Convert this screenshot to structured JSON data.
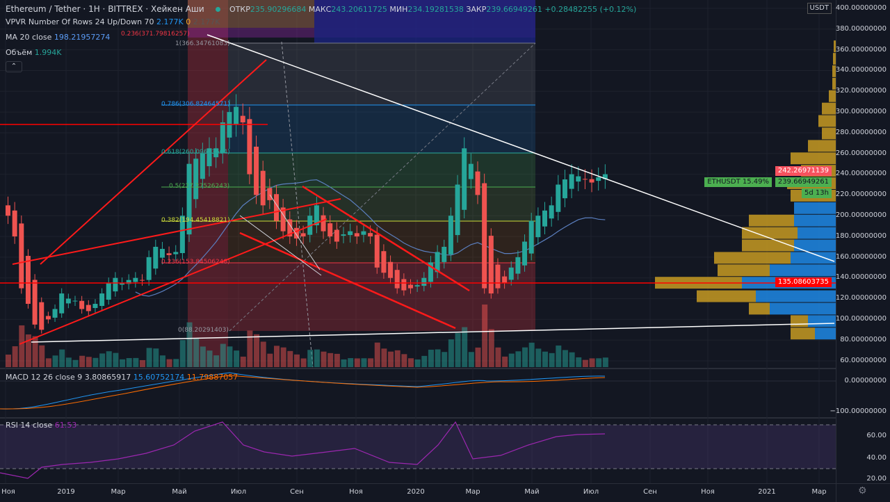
{
  "header": {
    "symbol": "Ethereum / Tether",
    "interval": "1H",
    "exchange": "BITTREX",
    "chart_style": "Хейкен Аши",
    "open_label": "ОТКР",
    "open": "235.90296684",
    "high_label": "МАКС",
    "high": "243.20611725",
    "low_label": "МИН",
    "low": "234.19281538",
    "close_label": "ЗАКР",
    "close": "239.66949261",
    "change": "+0.28482255 (+0.12%)"
  },
  "indicators": {
    "vpvr": {
      "label": "VPVR Number Of Rows 24 Up/Down 70",
      "up": "2.177K",
      "down": "0",
      "total": "2.177K"
    },
    "ma": {
      "label": "MA 20 close",
      "value": "198.21957274"
    },
    "volume": {
      "label": "Объём",
      "value": "1.994K"
    },
    "macd": {
      "label": "MACD 12 26 close 9",
      "hist": "3.80865917",
      "macd": "15.60752174",
      "signal": "11.79887057"
    },
    "rsi": {
      "label": "RSI 14 close",
      "value": "61.53"
    }
  },
  "fib": {
    "top": "0.236(371.79816257)",
    "l1": "1(366.34761083)",
    "l786": "0.786(306.82464571)",
    "l618": "0.618(260.09633664)",
    "l5": "0.5(227.27526243)",
    "l382": "0.382(194.45418821)",
    "l236": "0.236(153.84506248)",
    "l0": "0(88.20291403)"
  },
  "price_axis": {
    "currency": "USDT",
    "ticks": [
      "400.00000000",
      "380.00000000",
      "360.00000000",
      "340.00000000",
      "320.00000000",
      "300.00000000",
      "280.00000000",
      "260.00000000",
      "240.00000000",
      "220.00000000",
      "200.00000000",
      "180.00000000",
      "160.00000000",
      "140.00000000",
      "120.00000000",
      "100.00000000",
      "80.00000000",
      "60.00000000"
    ],
    "tag_high": "242.26971139",
    "tag_symbol": "ETHUSDT 15.49%",
    "tag_last": "239.66949261",
    "tag_countdown": "5d 13h",
    "tag_level": "135.08603735"
  },
  "macd_axis": [
    "0.00000000",
    "−100.00000000"
  ],
  "rsi_axis": [
    "60.00",
    "40.00",
    "20.00"
  ],
  "time_axis": [
    "Ноя",
    "2019",
    "Мар",
    "Май",
    "Июл",
    "Сен",
    "Ноя",
    "2020",
    "Мар",
    "Май",
    "Июл",
    "Сен",
    "Ноя",
    "2021",
    "Мар"
  ],
  "colors": {
    "up": "#26a69a",
    "down": "#ef5350",
    "ma": "#2962ff",
    "vp_up": "#1e88e5",
    "vp_down": "#c79a22",
    "level": "#ff0000"
  },
  "chart_data": {
    "type": "candlestick",
    "style": "heikin-ashi weekly view",
    "ylim": [
      60,
      400
    ],
    "closes": [
      200,
      180,
      130,
      115,
      95,
      90,
      100,
      110,
      125,
      120,
      118,
      110,
      108,
      115,
      125,
      135,
      140,
      135,
      138,
      140,
      138,
      160,
      170,
      168,
      162,
      165,
      200,
      250,
      255,
      260,
      265,
      265,
      290,
      300,
      305,
      290,
      240,
      220,
      210,
      215,
      195,
      185,
      180,
      178,
      180,
      200,
      210,
      185,
      180,
      175,
      182,
      185,
      180,
      185,
      180,
      150,
      145,
      140,
      130,
      128,
      130,
      133,
      140,
      155,
      165,
      170,
      200,
      230,
      265,
      250,
      220,
      130,
      125,
      130,
      135,
      150,
      160,
      175,
      195,
      200,
      205,
      210,
      230,
      235,
      240,
      238,
      235,
      232,
      237,
      240
    ],
    "ma_period": 20,
    "horizontal_levels": [
      135.08603735
    ],
    "volume_profile_rows": [
      [
        30,
        35,
        86
      ],
      [
        40,
        25,
        98
      ],
      [
        95,
        30,
        110
      ],
      [
        115,
        85,
        122
      ],
      [
        135,
        125,
        135
      ],
      [
        95,
        75,
        147
      ],
      [
        65,
        110,
        159
      ],
      [
        60,
        75,
        171
      ],
      [
        55,
        80,
        183
      ],
      [
        60,
        65,
        195
      ],
      [
        60,
        0,
        207
      ],
      [
        0,
        65,
        219
      ],
      [
        0,
        70,
        231
      ],
      [
        0,
        50,
        243
      ],
      [
        0,
        65,
        255
      ],
      [
        0,
        40,
        267
      ],
      [
        0,
        20,
        279
      ],
      [
        0,
        25,
        291
      ],
      [
        0,
        20,
        303
      ],
      [
        0,
        10,
        315
      ],
      [
        0,
        5,
        327
      ],
      [
        0,
        5,
        339
      ],
      [
        0,
        4,
        351
      ],
      [
        0,
        3,
        363
      ]
    ]
  }
}
